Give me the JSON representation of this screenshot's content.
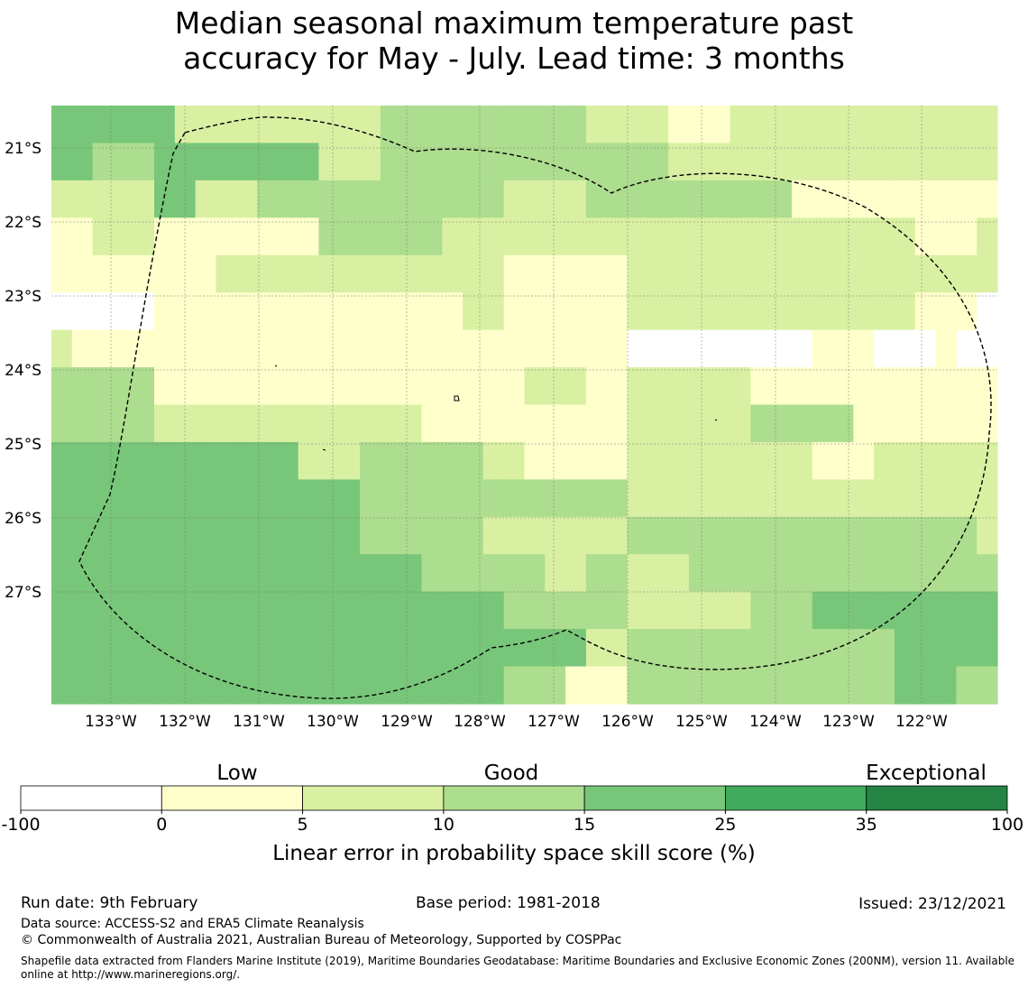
{
  "title": {
    "line1": "Median seasonal maximum temperature past",
    "line2": "accuracy for May - July. Lead time: 3 months"
  },
  "map": {
    "lat_labels": [
      "21°S",
      "22°S",
      "23°S",
      "24°S",
      "25°S",
      "26°S",
      "27°S"
    ],
    "lon_labels": [
      "133°W",
      "132°W",
      "131°W",
      "130°W",
      "129°W",
      "128°W",
      "127°W",
      "126°W",
      "125°W",
      "124°W",
      "123°W",
      "122°W"
    ],
    "grid": [
      [
        4,
        4,
        4,
        4,
        4,
        4,
        2,
        2,
        2,
        2,
        2,
        2,
        2,
        2,
        2,
        2,
        3,
        3,
        3,
        3,
        3,
        3,
        3,
        3,
        3,
        3,
        2,
        2,
        2,
        2,
        1,
        1,
        1,
        2,
        2,
        2,
        2,
        2,
        2,
        2,
        2,
        2,
        2,
        2,
        2,
        2
      ],
      [
        4,
        4,
        3,
        3,
        3,
        4,
        4,
        4,
        4,
        4,
        4,
        4,
        4,
        2,
        2,
        2,
        3,
        3,
        3,
        3,
        3,
        3,
        3,
        3,
        3,
        3,
        3,
        3,
        3,
        3,
        2,
        2,
        2,
        2,
        2,
        2,
        2,
        2,
        2,
        2,
        2,
        2,
        2,
        2,
        2,
        2
      ],
      [
        2,
        2,
        2,
        2,
        2,
        4,
        4,
        2,
        2,
        2,
        3,
        3,
        3,
        3,
        3,
        3,
        3,
        3,
        3,
        3,
        3,
        3,
        2,
        2,
        2,
        2,
        3,
        3,
        3,
        3,
        3,
        3,
        3,
        3,
        3,
        3,
        1,
        1,
        1,
        1,
        1,
        1,
        1,
        1,
        1,
        1
      ],
      [
        1,
        1,
        2,
        2,
        2,
        1,
        1,
        1,
        1,
        1,
        1,
        1,
        1,
        3,
        3,
        3,
        3,
        3,
        3,
        2,
        2,
        2,
        2,
        2,
        2,
        2,
        2,
        2,
        2,
        2,
        2,
        2,
        2,
        2,
        2,
        2,
        2,
        2,
        2,
        2,
        2,
        2,
        1,
        1,
        1,
        2
      ],
      [
        1,
        1,
        1,
        1,
        1,
        1,
        1,
        1,
        2,
        2,
        2,
        2,
        2,
        2,
        2,
        2,
        2,
        2,
        2,
        2,
        2,
        2,
        1,
        1,
        1,
        1,
        1,
        1,
        2,
        2,
        2,
        2,
        2,
        2,
        2,
        2,
        2,
        2,
        2,
        2,
        2,
        2,
        2,
        2,
        2,
        2
      ],
      [
        0,
        0,
        0,
        0,
        0,
        1,
        1,
        1,
        1,
        1,
        1,
        1,
        1,
        1,
        1,
        1,
        1,
        1,
        1,
        1,
        2,
        2,
        1,
        1,
        1,
        1,
        1,
        1,
        2,
        2,
        2,
        2,
        2,
        2,
        2,
        2,
        2,
        2,
        2,
        2,
        2,
        2,
        1,
        1,
        1,
        0
      ],
      [
        2,
        1,
        1,
        1,
        1,
        1,
        1,
        1,
        1,
        1,
        1,
        1,
        1,
        1,
        1,
        1,
        1,
        1,
        1,
        1,
        1,
        1,
        1,
        1,
        1,
        1,
        1,
        1,
        0,
        0,
        0,
        0,
        0,
        0,
        0,
        0,
        0,
        1,
        1,
        1,
        0,
        0,
        0,
        1
      ],
      [
        3,
        3,
        3,
        3,
        3,
        1,
        1,
        1,
        1,
        1,
        1,
        1,
        1,
        1,
        1,
        1,
        1,
        1,
        1,
        1,
        1,
        1,
        1,
        2,
        2,
        2,
        1,
        1,
        2,
        2,
        2,
        2,
        2,
        2,
        1,
        1,
        1,
        1,
        1,
        1,
        1,
        1,
        1,
        1,
        1,
        1
      ],
      [
        3,
        3,
        3,
        3,
        3,
        2,
        2,
        2,
        2,
        2,
        2,
        2,
        2,
        2,
        2,
        2,
        2,
        2,
        1,
        1,
        1,
        1,
        1,
        1,
        1,
        1,
        1,
        1,
        2,
        2,
        2,
        2,
        2,
        2,
        3,
        3,
        3,
        3,
        3,
        1,
        1,
        1,
        1,
        1,
        1,
        1
      ],
      [
        4,
        4,
        4,
        4,
        4,
        4,
        4,
        4,
        4,
        4,
        4,
        4,
        2,
        2,
        2,
        3,
        3,
        3,
        3,
        3,
        3,
        2,
        2,
        1,
        1,
        1,
        1,
        1,
        2,
        2,
        2,
        2,
        2,
        2,
        2,
        2,
        2,
        1,
        1,
        1,
        2,
        2,
        2,
        2,
        2,
        2
      ],
      [
        4,
        4,
        4,
        4,
        4,
        4,
        4,
        4,
        4,
        4,
        4,
        4,
        4,
        4,
        4,
        3,
        3,
        3,
        3,
        3,
        3,
        3,
        3,
        3,
        3,
        3,
        3,
        3,
        2,
        2,
        2,
        2,
        2,
        2,
        2,
        2,
        2,
        2,
        2,
        2,
        2,
        2,
        2,
        2,
        2,
        2
      ],
      [
        4,
        4,
        4,
        4,
        4,
        4,
        4,
        4,
        4,
        4,
        4,
        4,
        4,
        4,
        4,
        3,
        3,
        3,
        3,
        3,
        3,
        2,
        2,
        2,
        2,
        2,
        2,
        2,
        3,
        3,
        3,
        3,
        3,
        3,
        3,
        3,
        3,
        3,
        3,
        3,
        3,
        3,
        3,
        3,
        3,
        2
      ],
      [
        4,
        4,
        4,
        4,
        4,
        4,
        4,
        4,
        4,
        4,
        4,
        4,
        4,
        4,
        4,
        4,
        4,
        4,
        3,
        3,
        3,
        3,
        3,
        3,
        2,
        2,
        3,
        3,
        2,
        2,
        2,
        3,
        3,
        3,
        3,
        3,
        3,
        3,
        3,
        3,
        3,
        3,
        3,
        3,
        3,
        3
      ],
      [
        4,
        4,
        4,
        4,
        4,
        4,
        4,
        4,
        4,
        4,
        4,
        4,
        4,
        4,
        4,
        4,
        4,
        4,
        4,
        4,
        4,
        4,
        3,
        3,
        3,
        3,
        3,
        3,
        2,
        2,
        2,
        2,
        2,
        2,
        3,
        3,
        3,
        4,
        4,
        4,
        4,
        4,
        4,
        4,
        4,
        4
      ],
      [
        4,
        4,
        4,
        4,
        4,
        4,
        4,
        4,
        4,
        4,
        4,
        4,
        4,
        4,
        4,
        4,
        4,
        4,
        4,
        4,
        4,
        4,
        4,
        4,
        4,
        4,
        2,
        2,
        3,
        3,
        3,
        3,
        3,
        3,
        3,
        3,
        3,
        3,
        3,
        3,
        3,
        4,
        4,
        4,
        4,
        4
      ],
      [
        4,
        4,
        4,
        4,
        4,
        4,
        4,
        4,
        4,
        4,
        4,
        4,
        4,
        4,
        4,
        4,
        4,
        4,
        4,
        4,
        4,
        4,
        3,
        3,
        3,
        1,
        1,
        1,
        3,
        3,
        3,
        3,
        3,
        3,
        3,
        3,
        3,
        3,
        3,
        3,
        3,
        4,
        4,
        4,
        3,
        3
      ]
    ],
    "level_colors": [
      "#ffffff",
      "#ffffcc",
      "#d9f0a3",
      "#addd8e",
      "#78c679"
    ]
  },
  "legend": {
    "categories": [
      "Low",
      "Good",
      "Exceptional"
    ],
    "bins": [
      {
        "from": "-100",
        "to": "0",
        "color": "#ffffff"
      },
      {
        "from": "0",
        "to": "5",
        "color": "#ffffcc"
      },
      {
        "from": "5",
        "to": "10",
        "color": "#d9f0a3"
      },
      {
        "from": "10",
        "to": "15",
        "color": "#addd8e"
      },
      {
        "from": "15",
        "to": "25",
        "color": "#78c679"
      },
      {
        "from": "25",
        "to": "35",
        "color": "#41ab5d"
      },
      {
        "from": "35",
        "to": "100",
        "color": "#238443"
      }
    ],
    "ticks": [
      "-100",
      "0",
      "5",
      "10",
      "15",
      "25",
      "35",
      "100"
    ],
    "label": "Linear error in probability space skill score (%)"
  },
  "footer": {
    "run_date": "Run date: 9th February",
    "base_period": "Base period: 1981-2018",
    "issued": "Issued: 23/12/2021",
    "data_source": "Data source: ACCESS-S2 and ERA5 Climate Reanalysis",
    "copyright": "© Commonwealth of Australia 2021, Australian Bureau of Meteorology, Supported by COSPPac",
    "shapefile": "Shapefile data extracted from Flanders Marine Institute (2019), Maritime Boundaries Geodatabase: Maritime Boundaries and Exclusive Economic Zones (200NM), version 11. Available online at http://www.marineregions.org/."
  }
}
